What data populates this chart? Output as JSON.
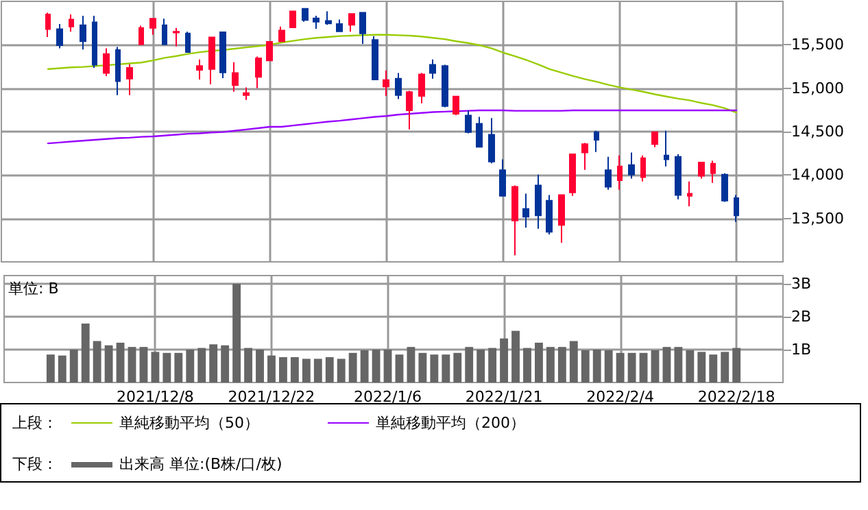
{
  "chart_data": [
    {
      "type": "candlestick",
      "categories": [
        null,
        null,
        null,
        null,
        null,
        null,
        null,
        null,
        null,
        null,
        null,
        null,
        null,
        "2021/12/8",
        null,
        null,
        null,
        null,
        null,
        null,
        null,
        null,
        null,
        "2021/12/22",
        null,
        null,
        null,
        null,
        null,
        null,
        null,
        null,
        null,
        "2022/1/6",
        null,
        null,
        null,
        null,
        null,
        null,
        null,
        null,
        null,
        "2022/1/21",
        null,
        null,
        null,
        null,
        null,
        null,
        null,
        null,
        null,
        "2022/2/4",
        null,
        null,
        null,
        null,
        null,
        null,
        null,
        null,
        null,
        "2022/2/18",
        null,
        null,
        null,
        null
      ],
      "series": [
        {
          "ohlc": [
            null,
            null,
            null,
            null,
            [
              15680,
              15870,
              15590,
              15850
            ],
            [
              15680,
              15740,
              15460,
              15495
            ],
            [
              15710,
              15850,
              15650,
              15790
            ],
            [
              15725,
              15835,
              15445,
              15540
            ],
            [
              15760,
              15835,
              15235,
              15270
            ],
            [
              15175,
              15460,
              15140,
              15395
            ],
            [
              15440,
              15475,
              14920,
              15080
            ],
            [
              15110,
              15275,
              14920,
              15235
            ],
            [
              15505,
              15720,
              15505,
              15695
            ],
            [
              15695,
              15800,
              15615,
              15800
            ],
            [
              15725,
              15800,
              15505,
              15505
            ],
            [
              15640,
              15695,
              15480,
              15650
            ],
            [
              15630,
              15650,
              15415,
              15415
            ],
            [
              15210,
              15330,
              15100,
              15255
            ],
            [
              15220,
              15585,
              15045,
              15585
            ],
            [
              15645,
              15650,
              15115,
              15180
            ],
            [
              15035,
              15300,
              14960,
              15175
            ],
            [
              14920,
              15010,
              14865,
              14945
            ],
            [
              15130,
              15365,
              15000,
              15345
            ],
            [
              15320,
              15540,
              15320,
              15535
            ],
            [
              15540,
              15710,
              15530,
              15665
            ],
            [
              15700,
              15885,
              15700,
              15885
            ],
            [
              15915,
              15915,
              15765,
              15785
            ],
            [
              15805,
              15835,
              15685,
              15765
            ],
            [
              15775,
              15885,
              15730,
              15745
            ],
            [
              15740,
              15790,
              15650,
              15655
            ],
            [
              15730,
              15855,
              15650,
              15855
            ],
            [
              15870,
              15870,
              15510,
              15630
            ],
            [
              15555,
              15600,
              15100,
              15100
            ],
            [
              15020,
              15205,
              14910,
              15095
            ],
            [
              15110,
              15175,
              14875,
              14920
            ],
            [
              14745,
              14970,
              14525,
              14955
            ],
            [
              14910,
              15175,
              14825,
              15160
            ],
            [
              15270,
              15330,
              15110,
              15175
            ],
            [
              15255,
              15270,
              14780,
              14795
            ],
            [
              14705,
              14905,
              14690,
              14905
            ],
            [
              14685,
              14745,
              14480,
              14495
            ],
            [
              14590,
              14670,
              14325,
              14325
            ],
            [
              14465,
              14655,
              14135,
              14155
            ],
            [
              14055,
              14180,
              13760,
              13760
            ],
            [
              13475,
              13880,
              13075,
              13865
            ],
            [
              13610,
              13785,
              13395,
              13520
            ],
            [
              13880,
              14005,
              13380,
              13535
            ],
            [
              13705,
              13770,
              13315,
              13345
            ],
            [
              13425,
              13770,
              13220,
              13770
            ],
            [
              13800,
              14240,
              13760,
              14240
            ],
            [
              14260,
              14370,
              14060,
              14355
            ],
            [
              14495,
              14510,
              14265,
              14405
            ],
            [
              14055,
              14210,
              13830,
              13865
            ],
            [
              13940,
              14225,
              13830,
              14100
            ],
            [
              14115,
              14260,
              13960,
              14005
            ],
            [
              13975,
              14225,
              13925,
              14195
            ],
            [
              14355,
              14495,
              14320,
              14495
            ],
            [
              14225,
              14510,
              14100,
              14180
            ],
            [
              14210,
              14240,
              13720,
              13770
            ],
            [
              13760,
              13925,
              13640,
              13785
            ],
            [
              13990,
              14150,
              13960,
              14145
            ],
            [
              14020,
              14165,
              13910,
              14130
            ],
            [
              14005,
              14020,
              13690,
              13705
            ],
            [
              13735,
              13770,
              13460,
              13535
            ],
            null,
            null,
            null,
            null
          ],
          "colors": [
            null,
            null,
            null,
            null,
            "#ff0033",
            "#003399",
            "#ff0033",
            "#003399",
            "#003399",
            "#ff0033",
            "#003399",
            "#ff0033",
            "#ff0033",
            "#ff0033",
            "#003399",
            "#ff0033",
            "#003399",
            "#ff0033",
            "#ff0033",
            "#003399",
            "#ff0033",
            "#ff0033",
            "#ff0033",
            "#ff0033",
            "#ff0033",
            "#ff0033",
            "#003399",
            "#003399",
            "#003399",
            "#003399",
            "#ff0033",
            "#003399",
            "#003399",
            "#ff0033",
            "#003399",
            "#ff0033",
            "#ff0033",
            "#003399",
            "#003399",
            "#ff0033",
            "#003399",
            "#003399",
            "#003399",
            "#003399",
            "#ff0033",
            "#003399",
            "#003399",
            "#003399",
            "#ff0033",
            "#ff0033",
            "#ff0033",
            "#003399",
            "#003399",
            "#ff0033",
            "#003399",
            "#ff0033",
            "#ff0033",
            "#003399",
            "#003399",
            "#ff0033",
            "#ff0033",
            "#ff0033",
            "#003399",
            "#003399",
            null,
            null,
            null,
            null
          ]
        },
        {
          "type": "line",
          "name": "単純移動平均（50）",
          "color": "#99cc00",
          "values": [
            null,
            null,
            null,
            null,
            15220,
            15230,
            15240,
            15245,
            15255,
            15265,
            15275,
            15285,
            15295,
            15320,
            15350,
            15370,
            15395,
            15415,
            15430,
            15440,
            15455,
            15470,
            15485,
            15500,
            15525,
            15545,
            15565,
            15580,
            15590,
            15600,
            15605,
            15610,
            15615,
            15615,
            15610,
            15605,
            15595,
            15580,
            15565,
            15540,
            15520,
            15495,
            15460,
            15410,
            15370,
            15325,
            15275,
            15220,
            15180,
            15140,
            15105,
            15075,
            15040,
            15010,
            14985,
            14960,
            14930,
            14905,
            14880,
            14860,
            14830,
            14805,
            14770,
            14720,
            null,
            null,
            null,
            null
          ]
        },
        {
          "type": "line",
          "name": "単純移動平均（200）",
          "color": "#9900ff",
          "values": [
            null,
            null,
            null,
            null,
            14365,
            14375,
            14385,
            14395,
            14405,
            14415,
            14425,
            14430,
            14440,
            14445,
            14455,
            14465,
            14475,
            14480,
            14490,
            14495,
            14510,
            14525,
            14540,
            14555,
            14555,
            14570,
            14585,
            14600,
            14615,
            14625,
            14640,
            14655,
            14670,
            14680,
            14695,
            14705,
            14715,
            14725,
            14730,
            14735,
            14740,
            14745,
            14745,
            14745,
            14740,
            14740,
            14740,
            14740,
            14740,
            14745,
            14745,
            14745,
            14745,
            14745,
            14745,
            14745,
            14745,
            14745,
            14745,
            14745,
            14745,
            14745,
            14745,
            14745,
            null,
            null,
            null,
            null
          ]
        }
      ],
      "ylim": [
        13000,
        16000
      ],
      "yticks": [
        {
          "value": 13500,
          "label": "13,500"
        },
        {
          "value": 14000,
          "label": "14,000"
        },
        {
          "value": 14500,
          "label": "14,500"
        },
        {
          "value": 15000,
          "label": "15,000"
        },
        {
          "value": 15500,
          "label": "15,500"
        }
      ],
      "grid": true,
      "marker": "none",
      "line_style": "solid",
      "tick_labels": "y",
      "legend": "bottom",
      "legend_title": "上段："
    },
    {
      "type": "bar",
      "categories": [
        null,
        null,
        null,
        null,
        null,
        null,
        null,
        null,
        null,
        null,
        null,
        null,
        null,
        "2021/12/8",
        null,
        null,
        null,
        null,
        null,
        null,
        null,
        null,
        null,
        "2021/12/22",
        null,
        null,
        null,
        null,
        null,
        null,
        null,
        null,
        null,
        "2022/1/6",
        null,
        null,
        null,
        null,
        null,
        null,
        null,
        null,
        null,
        "2022/1/21",
        null,
        null,
        null,
        null,
        null,
        null,
        null,
        null,
        null,
        "2022/2/4",
        null,
        null,
        null,
        null,
        null,
        null,
        null,
        null,
        null,
        "2022/2/18",
        null,
        null,
        null,
        null
      ],
      "series": [
        {
          "name": "出来高 単位:(B株/口/枚)",
          "color": "#666666",
          "values": [
            null,
            null,
            null,
            null,
            0.85,
            0.82,
            1.0,
            1.79,
            1.26,
            1.13,
            1.21,
            1.08,
            1.08,
            0.93,
            0.9,
            0.9,
            1.0,
            1.05,
            1.16,
            1.13,
            3.0,
            1.05,
            1.0,
            0.82,
            0.77,
            0.77,
            0.72,
            0.72,
            0.77,
            0.72,
            0.9,
            0.98,
            1.0,
            1.0,
            0.85,
            1.08,
            0.9,
            0.85,
            0.85,
            0.9,
            1.08,
            1.0,
            1.05,
            1.34,
            1.57,
            1.05,
            1.21,
            1.08,
            1.08,
            1.26,
            0.98,
            1.0,
            0.98,
            0.9,
            0.9,
            0.9,
            0.98,
            1.08,
            1.08,
            0.98,
            0.93,
            0.85,
            0.93,
            1.05,
            null,
            null,
            null,
            null
          ]
        }
      ],
      "ylim": [
        0,
        3.25
      ],
      "yticks": [
        {
          "value": 1,
          "label": "1B"
        },
        {
          "value": 2,
          "label": "2B"
        },
        {
          "value": 3,
          "label": "3B"
        }
      ],
      "grid": true,
      "legend": "bottom",
      "legend_title": "下段：",
      "annotations": [
        "単位: B"
      ]
    }
  ]
}
